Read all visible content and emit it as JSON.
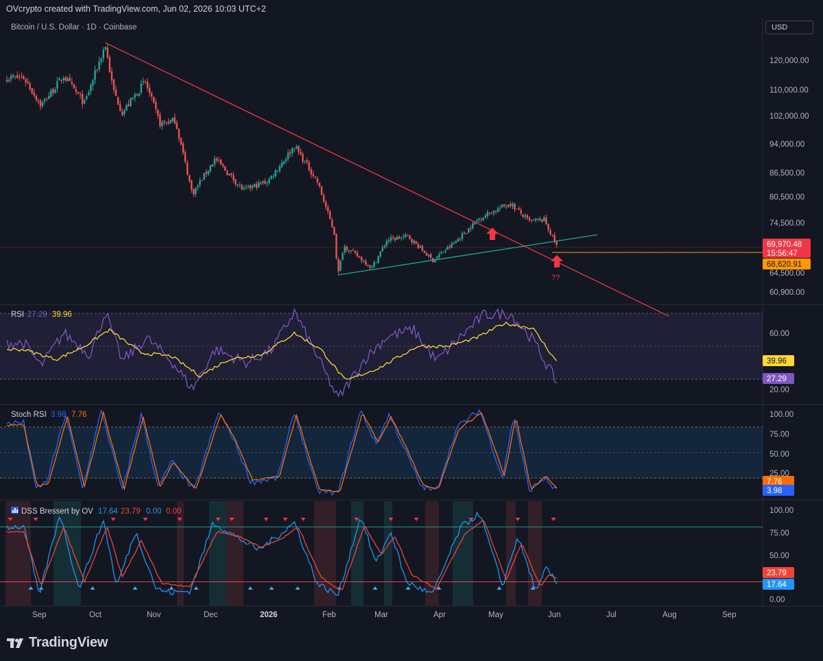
{
  "header": {
    "credit": "OVcrypto created with TradingView.com, Jun 02, 2026 10:03 UTC+2"
  },
  "symbol": {
    "title": "Bitcoin / U.S. Dollar · 1D · Coinbase",
    "currency": "USD"
  },
  "price_axis": {
    "ticks": [
      "120,000.00",
      "110,000.00",
      "102,000.00",
      "94,000.00",
      "86,500.00",
      "80,500.00",
      "74,500.00",
      "64,500.00",
      "60,900.00"
    ],
    "last_price": "69,970.48",
    "countdown": "15:56:47",
    "level_price": "68,620.91"
  },
  "annotations": {
    "question": "??"
  },
  "rsi": {
    "label": "RSI",
    "value_rsi": "27.29",
    "value_ma": "39.96",
    "ticks": [
      "60.00",
      "20.00"
    ]
  },
  "stoch": {
    "label": "Stoch RSI",
    "value_k": "3.98",
    "value_d": "7.76",
    "ticks": [
      "100.00",
      "75.00",
      "50.00",
      "25.00"
    ]
  },
  "dss": {
    "label": "DSS Bressert by OV",
    "v1": "17.64",
    "v2": "23.79",
    "v3": "0.00",
    "v4": "0.00",
    "ticks": [
      "100.00",
      "75.00",
      "50.00",
      "0.00"
    ]
  },
  "time_axis": {
    "labels": [
      "Sep",
      "Oct",
      "Nov",
      "Dec",
      "2026",
      "Feb",
      "Mar",
      "Apr",
      "May",
      "Jun",
      "Jul",
      "Aug",
      "Sep"
    ]
  },
  "footer": {
    "brand": "TradingView"
  },
  "colors": {
    "bg": "#131722",
    "up": "#26a69a",
    "down": "#ef5350",
    "trend_red": "#f23645",
    "trend_teal": "#22ab94",
    "rsi": "#7e57c2",
    "rsi_ma": "#fdd835",
    "stoch_k": "#2962ff",
    "stoch_d": "#ff6d00",
    "dss_fast": "#2196f3",
    "dss_slow": "#f44336"
  },
  "chart_data": [
    {
      "type": "candlestick",
      "title": "Bitcoin / U.S. Dollar · 1D · Coinbase",
      "x_range": [
        "2025-08-20",
        "2026-09-30"
      ],
      "y_range": [
        58000,
        128000
      ],
      "series": [
        {
          "name": "BTCUSD",
          "points": [
            [
              "2025-08-24",
              116000
            ],
            [
              "2025-09-02",
              108500
            ],
            [
              "2025-09-14",
              116500
            ],
            [
              "2025-09-25",
              109000
            ],
            [
              "2025-10-06",
              125000
            ],
            [
              "2025-10-10",
              113000
            ],
            [
              "2025-10-15",
              106500
            ],
            [
              "2025-10-27",
              115000
            ],
            [
              "2025-11-04",
              103500
            ],
            [
              "2025-11-12",
              104500
            ],
            [
              "2025-11-21",
              84500
            ],
            [
              "2025-12-03",
              94000
            ],
            [
              "2025-12-18",
              85500
            ],
            [
              "2025-12-31",
              88000
            ],
            [
              "2026-01-14",
              97500
            ],
            [
              "2026-01-26",
              88000
            ],
            [
              "2026-02-04",
              74000
            ],
            [
              "2026-02-06",
              62500
            ],
            [
              "2026-02-09",
              70500
            ],
            [
              "2026-02-24",
              64500
            ],
            [
              "2026-03-04",
              72000
            ],
            [
              "2026-03-15",
              73000
            ],
            [
              "2026-03-28",
              66500
            ],
            [
              "2026-04-08",
              71000
            ],
            [
              "2026-04-22",
              78000
            ],
            [
              "2026-05-08",
              82000
            ],
            [
              "2026-05-18",
              77000
            ],
            [
              "2026-05-26",
              77500
            ],
            [
              "2026-06-02",
              69970
            ]
          ]
        }
      ],
      "lines": [
        {
          "name": "",
          "from": [
            "2025-10-06",
            125500
          ],
          "to": [
            "2026-06-30",
            59000
          ]
        },
        {
          "name": "",
          "from": [
            "2026-02-06",
            62500
          ],
          "to": [
            "2026-06-23",
            73400
          ]
        }
      ],
      "horizontal_level": 68620.91
    },
    {
      "type": "line",
      "title": "RSI",
      "y_range": [
        15,
        75
      ],
      "band": [
        30,
        70
      ],
      "series": [
        {
          "name": "RSI",
          "points": [
            [
              "2025-08-24",
              52
            ],
            [
              "2025-09-02",
              38
            ],
            [
              "2025-09-14",
              58
            ],
            [
              "2025-09-28",
              45
            ],
            [
              "2025-10-06",
              71
            ],
            [
              "2025-10-15",
              41
            ],
            [
              "2025-10-28",
              55
            ],
            [
              "2025-11-10",
              41
            ],
            [
              "2025-11-21",
              24
            ],
            [
              "2025-12-03",
              48
            ],
            [
              "2025-12-20",
              40
            ],
            [
              "2026-01-02",
              48
            ],
            [
              "2026-01-14",
              71
            ],
            [
              "2026-01-26",
              44
            ],
            [
              "2026-02-06",
              18
            ],
            [
              "2026-02-20",
              42
            ],
            [
              "2026-03-04",
              56
            ],
            [
              "2026-03-18",
              60
            ],
            [
              "2026-03-30",
              41
            ],
            [
              "2026-04-12",
              56
            ],
            [
              "2026-04-24",
              69
            ],
            [
              "2026-05-08",
              70
            ],
            [
              "2026-05-20",
              54
            ],
            [
              "2026-06-02",
              27.29
            ]
          ]
        },
        {
          "name": "",
          "points": [
            [
              "2025-08-24",
              48
            ],
            [
              "2025-09-10",
              42
            ],
            [
              "2025-09-25",
              50
            ],
            [
              "2025-10-08",
              60
            ],
            [
              "2025-10-25",
              46
            ],
            [
              "2025-11-10",
              44
            ],
            [
              "2025-11-25",
              32
            ],
            [
              "2025-12-10",
              42
            ],
            [
              "2025-12-28",
              45
            ],
            [
              "2026-01-14",
              58
            ],
            [
              "2026-01-28",
              48
            ],
            [
              "2026-02-10",
              29
            ],
            [
              "2026-02-28",
              37
            ],
            [
              "2026-03-20",
              50
            ],
            [
              "2026-04-05",
              50
            ],
            [
              "2026-04-20",
              55
            ],
            [
              "2026-05-05",
              64
            ],
            [
              "2026-05-20",
              61
            ],
            [
              "2026-06-02",
              39.96
            ]
          ]
        }
      ]
    },
    {
      "type": "line",
      "title": "Stoch RSI",
      "y_range": [
        0,
        100
      ],
      "band": [
        20,
        80
      ],
      "series": [
        {
          "name": "",
          "points": [
            [
              "2025-08-24",
              85
            ],
            [
              "2025-08-30",
              8
            ],
            [
              "2025-09-05",
              15
            ],
            [
              "2025-09-15",
              95
            ],
            [
              "2025-09-24",
              8
            ],
            [
              "2025-10-04",
              100
            ],
            [
              "2025-10-15",
              5
            ],
            [
              "2025-10-25",
              95
            ],
            [
              "2025-11-03",
              8
            ],
            [
              "2025-11-10",
              40
            ],
            [
              "2025-11-22",
              5
            ],
            [
              "2025-12-05",
              98
            ],
            [
              "2025-12-12",
              70
            ],
            [
              "2025-12-22",
              15
            ],
            [
              "2026-01-05",
              20
            ],
            [
              "2026-01-14",
              98
            ],
            [
              "2026-01-26",
              5
            ],
            [
              "2026-02-06",
              2
            ],
            [
              "2026-02-18",
              100
            ],
            [
              "2026-02-26",
              60
            ],
            [
              "2026-03-05",
              95
            ],
            [
              "2026-03-14",
              50
            ],
            [
              "2026-03-22",
              10
            ],
            [
              "2026-03-30",
              5
            ],
            [
              "2026-04-10",
              80
            ],
            [
              "2026-04-22",
              100
            ],
            [
              "2026-05-04",
              20
            ],
            [
              "2026-05-10",
              95
            ],
            [
              "2026-05-18",
              5
            ],
            [
              "2026-05-26",
              20
            ],
            [
              "2026-06-02",
              3.98
            ]
          ]
        },
        {
          "name": "",
          "points": [
            [
              "2025-08-24",
              82
            ],
            [
              "2025-08-31",
              10
            ],
            [
              "2025-09-06",
              14
            ],
            [
              "2025-09-16",
              92
            ],
            [
              "2025-09-25",
              10
            ],
            [
              "2025-10-05",
              97
            ],
            [
              "2025-10-16",
              7
            ],
            [
              "2025-10-26",
              92
            ],
            [
              "2025-11-04",
              10
            ],
            [
              "2025-11-11",
              38
            ],
            [
              "2025-11-23",
              7
            ],
            [
              "2025-12-06",
              95
            ],
            [
              "2025-12-13",
              68
            ],
            [
              "2025-12-23",
              17
            ],
            [
              "2026-01-06",
              22
            ],
            [
              "2026-01-15",
              95
            ],
            [
              "2026-01-27",
              7
            ],
            [
              "2026-02-07",
              4
            ],
            [
              "2026-02-19",
              97
            ],
            [
              "2026-02-27",
              62
            ],
            [
              "2026-03-06",
              92
            ],
            [
              "2026-03-15",
              52
            ],
            [
              "2026-03-23",
              12
            ],
            [
              "2026-03-31",
              7
            ],
            [
              "2026-04-11",
              78
            ],
            [
              "2026-04-23",
              97
            ],
            [
              "2026-05-05",
              22
            ],
            [
              "2026-05-11",
              92
            ],
            [
              "2026-05-19",
              7
            ],
            [
              "2026-05-27",
              22
            ],
            [
              "2026-06-02",
              7.76
            ]
          ]
        }
      ]
    },
    {
      "type": "line",
      "title": "DSS Bressert by OV",
      "y_range": [
        0,
        100
      ],
      "levels": [
        80,
        20
      ],
      "series": [
        {
          "name": "",
          "points": [
            [
              "2025-08-24",
              80
            ],
            [
              "2025-09-01",
              5
            ],
            [
              "2025-09-12",
              95
            ],
            [
              "2025-09-22",
              12
            ],
            [
              "2025-10-05",
              88
            ],
            [
              "2025-10-12",
              15
            ],
            [
              "2025-10-22",
              75
            ],
            [
              "2025-11-02",
              12
            ],
            [
              "2025-11-10",
              8
            ],
            [
              "2025-11-20",
              10
            ],
            [
              "2025-12-02",
              85
            ],
            [
              "2025-12-12",
              72
            ],
            [
              "2025-12-26",
              55
            ],
            [
              "2026-01-05",
              70
            ],
            [
              "2026-01-14",
              85
            ],
            [
              "2026-01-26",
              18
            ],
            [
              "2026-02-06",
              5
            ],
            [
              "2026-02-18",
              92
            ],
            [
              "2026-02-26",
              40
            ],
            [
              "2026-03-06",
              75
            ],
            [
              "2026-03-14",
              20
            ],
            [
              "2026-03-28",
              6
            ],
            [
              "2026-04-12",
              80
            ],
            [
              "2026-04-22",
              95
            ],
            [
              "2026-05-04",
              15
            ],
            [
              "2026-05-12",
              70
            ],
            [
              "2026-05-22",
              8
            ],
            [
              "2026-05-27",
              35
            ],
            [
              "2026-06-02",
              17.64
            ]
          ]
        },
        {
          "name": "",
          "points": [
            [
              "2025-08-24",
              75
            ],
            [
              "2025-09-02",
              15
            ],
            [
              "2025-09-14",
              80
            ],
            [
              "2025-09-25",
              20
            ],
            [
              "2025-10-07",
              80
            ],
            [
              "2025-10-15",
              25
            ],
            [
              "2025-10-25",
              65
            ],
            [
              "2025-11-05",
              18
            ],
            [
              "2025-11-20",
              15
            ],
            [
              "2025-12-04",
              75
            ],
            [
              "2025-12-15",
              70
            ],
            [
              "2025-12-28",
              58
            ],
            [
              "2026-01-08",
              68
            ],
            [
              "2026-01-16",
              80
            ],
            [
              "2026-01-28",
              25
            ],
            [
              "2026-02-08",
              10
            ],
            [
              "2026-02-20",
              82
            ],
            [
              "2026-03-01",
              50
            ],
            [
              "2026-03-08",
              70
            ],
            [
              "2026-03-17",
              28
            ],
            [
              "2026-03-30",
              12
            ],
            [
              "2026-04-14",
              72
            ],
            [
              "2026-04-24",
              88
            ],
            [
              "2026-05-06",
              22
            ],
            [
              "2026-05-14",
              62
            ],
            [
              "2026-05-24",
              15
            ],
            [
              "2026-05-29",
              28
            ],
            [
              "2026-06-02",
              23.79
            ]
          ]
        }
      ]
    }
  ]
}
